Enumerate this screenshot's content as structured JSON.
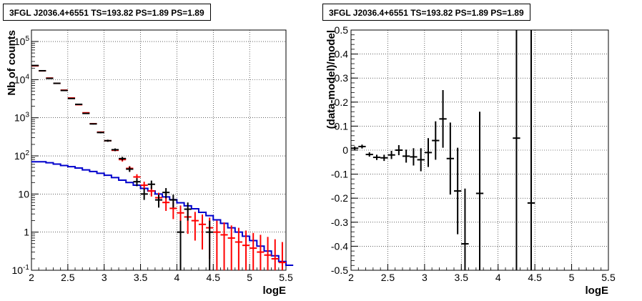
{
  "chart_data": [
    {
      "type": "scatter",
      "title": "3FGL J2036.4+6551 TS=193.82 PS=1.89 PS=1.89",
      "xlabel": "logE",
      "ylabel": "Nb of counts",
      "xlim": [
        2,
        5.5
      ],
      "ylim": [
        0.1,
        200000
      ],
      "yscale": "log",
      "grid": true,
      "xticks": [
        "2",
        "2.5",
        "3",
        "3.5",
        "4",
        "4.5",
        "5",
        "5.5"
      ],
      "yticks": [
        {
          "v": 0.1,
          "base": "10",
          "exp": "-1"
        },
        {
          "v": 1,
          "base": "1",
          "exp": ""
        },
        {
          "v": 10,
          "base": "10",
          "exp": ""
        },
        {
          "v": 100,
          "base": "10",
          "exp": "2"
        },
        {
          "v": 1000,
          "base": "10",
          "exp": "3"
        },
        {
          "v": 10000,
          "base": "10",
          "exp": "4"
        },
        {
          "v": 100000,
          "base": "10",
          "exp": "5"
        }
      ],
      "bin_width": 0.1,
      "series": [
        {
          "role": "model",
          "color": "#ff0000",
          "points": [
            {
              "x": 2.05,
              "y": 23000,
              "lo": 23000,
              "hi": 23000
            },
            {
              "x": 2.15,
              "y": 17000,
              "lo": 17000,
              "hi": 17000
            },
            {
              "x": 2.25,
              "y": 11000,
              "lo": 11000,
              "hi": 11000
            },
            {
              "x": 2.35,
              "y": 8000,
              "lo": 8000,
              "hi": 8000
            },
            {
              "x": 2.45,
              "y": 5300,
              "lo": 5300,
              "hi": 5300
            },
            {
              "x": 2.55,
              "y": 3300,
              "lo": 3300,
              "hi": 3300
            },
            {
              "x": 2.65,
              "y": 2200,
              "lo": 2200,
              "hi": 2200
            },
            {
              "x": 2.75,
              "y": 1350,
              "lo": 1350,
              "hi": 1350
            },
            {
              "x": 2.85,
              "y": 700,
              "lo": 700,
              "hi": 700
            },
            {
              "x": 2.95,
              "y": 420,
              "lo": 420,
              "hi": 420
            },
            {
              "x": 3.05,
              "y": 250,
              "lo": 250,
              "hi": 250
            },
            {
              "x": 3.15,
              "y": 140,
              "lo": 140,
              "hi": 140
            },
            {
              "x": 3.25,
              "y": 80,
              "lo": 71,
              "hi": 89
            },
            {
              "x": 3.35,
              "y": 47,
              "lo": 40,
              "hi": 54
            },
            {
              "x": 3.45,
              "y": 28,
              "lo": 23,
              "hi": 33
            },
            {
              "x": 3.55,
              "y": 17,
              "lo": 13,
              "hi": 21
            },
            {
              "x": 3.65,
              "y": 12,
              "lo": 8.6,
              "hi": 15.5
            },
            {
              "x": 3.75,
              "y": 8,
              "lo": 5.2,
              "hi": 10.8
            },
            {
              "x": 3.85,
              "y": 6,
              "lo": 3.6,
              "hi": 8.5
            },
            {
              "x": 3.95,
              "y": 4.2,
              "lo": 2.2,
              "hi": 6.2
            },
            {
              "x": 4.05,
              "y": 3.2,
              "lo": 1.4,
              "hi": 5
            },
            {
              "x": 4.15,
              "y": 2.5,
              "lo": 0.9,
              "hi": 4.1
            },
            {
              "x": 4.25,
              "y": 2.0,
              "lo": 0.6,
              "hi": 3.4
            },
            {
              "x": 4.35,
              "y": 1.6,
              "lo": 0.35,
              "hi": 2.9
            },
            {
              "x": 4.45,
              "y": 1.3,
              "lo": 0.2,
              "hi": 2.4
            },
            {
              "x": 4.55,
              "y": 1.0,
              "lo": 0.1,
              "hi": 2.0
            },
            {
              "x": 4.65,
              "y": 0.85,
              "lo": 0.1,
              "hi": 1.8
            },
            {
              "x": 4.75,
              "y": 0.7,
              "lo": 0.1,
              "hi": 1.5
            },
            {
              "x": 4.85,
              "y": 0.55,
              "lo": 0.1,
              "hi": 1.3
            },
            {
              "x": 4.95,
              "y": 0.45,
              "lo": 0.1,
              "hi": 1.1
            },
            {
              "x": 5.05,
              "y": 0.38,
              "lo": 0.1,
              "hi": 0.95
            },
            {
              "x": 5.15,
              "y": 0.3,
              "lo": 0.1,
              "hi": 0.85
            },
            {
              "x": 5.25,
              "y": 0.25,
              "lo": 0.1,
              "hi": 0.75
            },
            {
              "x": 5.35,
              "y": 0.2,
              "lo": 0.1,
              "hi": 0.65
            },
            {
              "x": 5.45,
              "y": 0.16,
              "lo": 0.1,
              "hi": 0.55
            }
          ]
        },
        {
          "role": "data",
          "color": "#000000",
          "points": [
            {
              "x": 2.05,
              "y": 23500,
              "lo": 23300,
              "hi": 23700
            },
            {
              "x": 2.15,
              "y": 17100,
              "lo": 16900,
              "hi": 17300
            },
            {
              "x": 2.25,
              "y": 10800,
              "lo": 10700,
              "hi": 10900
            },
            {
              "x": 2.35,
              "y": 8000,
              "lo": 7900,
              "hi": 8100
            },
            {
              "x": 2.45,
              "y": 5200,
              "lo": 5130,
              "hi": 5270
            },
            {
              "x": 2.55,
              "y": 3200,
              "lo": 3140,
              "hi": 3260
            },
            {
              "x": 2.65,
              "y": 2250,
              "lo": 2200,
              "hi": 2300
            },
            {
              "x": 2.75,
              "y": 1300,
              "lo": 1260,
              "hi": 1340
            },
            {
              "x": 2.85,
              "y": 690,
              "lo": 665,
              "hi": 715
            },
            {
              "x": 2.95,
              "y": 410,
              "lo": 390,
              "hi": 430
            },
            {
              "x": 3.05,
              "y": 250,
              "lo": 234,
              "hi": 266
            },
            {
              "x": 3.15,
              "y": 145,
              "lo": 133,
              "hi": 157
            },
            {
              "x": 3.25,
              "y": 85,
              "lo": 76,
              "hi": 94
            },
            {
              "x": 3.35,
              "y": 45,
              "lo": 38,
              "hi": 52
            },
            {
              "x": 3.45,
              "y": 21,
              "lo": 16,
              "hi": 26
            },
            {
              "x": 3.55,
              "y": 10,
              "lo": 7,
              "hi": 14
            },
            {
              "x": 3.65,
              "y": 18,
              "lo": 13.5,
              "hi": 22.5
            },
            {
              "x": 3.75,
              "y": 7,
              "lo": 4.4,
              "hi": 9.6
            },
            {
              "x": 3.85,
              "y": 11,
              "lo": 7.7,
              "hi": 14.3
            },
            {
              "x": 3.95,
              "y": 7,
              "lo": 4.4,
              "hi": 9.6
            },
            {
              "x": 4.05,
              "y": 1,
              "lo": 0.1,
              "hi": 2
            },
            {
              "x": 4.15,
              "y": 4,
              "lo": 2,
              "hi": 6
            },
            {
              "x": 4.45,
              "y": 1,
              "lo": 0.1,
              "hi": 2
            }
          ]
        }
      ],
      "step_series": {
        "role": "model-component",
        "color": "#0000cc",
        "values": [
          70,
          70,
          66,
          61,
          56,
          52,
          48,
          43,
          39,
          35,
          31,
          27,
          23,
          20,
          17,
          14,
          12,
          10,
          8.4,
          7.1,
          5.9,
          4.9,
          4.1,
          3.3,
          2.7,
          2.1,
          1.7,
          1.3,
          1.0,
          0.78,
          0.6,
          0.43,
          0.32,
          0.24,
          0.17,
          0.135
        ]
      }
    },
    {
      "type": "scatter",
      "title": "3FGL J2036.4+6551 TS=193.82 PS=1.89 PS=1.89",
      "xlabel": "logE",
      "ylabel": "(data-model)/model",
      "xlim": [
        2,
        5.5
      ],
      "ylim": [
        -0.5,
        0.5
      ],
      "grid": true,
      "xticks": [
        "2",
        "2.5",
        "3",
        "3.5",
        "4",
        "4.5",
        "5",
        "5.5"
      ],
      "yticks": [
        "-0.5",
        "-0.4",
        "-0.3",
        "-0.2",
        "-0.1",
        "0",
        "0.1",
        "0.2",
        "0.3",
        "0.4",
        "0.5"
      ],
      "bin_width": 0.1,
      "color": "#000000",
      "points": [
        {
          "x": 2.05,
          "y": 0.008,
          "err": 0.007
        },
        {
          "x": 2.15,
          "y": 0.015,
          "err": 0.008
        },
        {
          "x": 2.25,
          "y": -0.018,
          "err": 0.009
        },
        {
          "x": 2.35,
          "y": -0.03,
          "err": 0.011
        },
        {
          "x": 2.45,
          "y": -0.032,
          "err": 0.013
        },
        {
          "x": 2.55,
          "y": -0.02,
          "err": 0.017
        },
        {
          "x": 2.65,
          "y": 0.0,
          "err": 0.021
        },
        {
          "x": 2.75,
          "y": -0.025,
          "err": 0.027
        },
        {
          "x": 2.85,
          "y": -0.028,
          "err": 0.036
        },
        {
          "x": 2.95,
          "y": -0.04,
          "err": 0.048
        },
        {
          "x": 3.05,
          "y": -0.01,
          "err": 0.06
        },
        {
          "x": 3.15,
          "y": 0.04,
          "err": 0.08
        },
        {
          "x": 3.25,
          "y": 0.13,
          "err": 0.12
        },
        {
          "x": 3.35,
          "y": -0.035,
          "err": 0.15
        },
        {
          "x": 3.45,
          "y": -0.17,
          "err": 0.18
        },
        {
          "x": 3.55,
          "y": -0.39,
          "err": 0.23
        },
        {
          "x": 3.75,
          "y": -0.18,
          "err": 0.34
        },
        {
          "x": 4.25,
          "y": 0.05,
          "err": 0.65
        },
        {
          "x": 4.45,
          "y": -0.22,
          "err": 0.9
        }
      ]
    }
  ]
}
